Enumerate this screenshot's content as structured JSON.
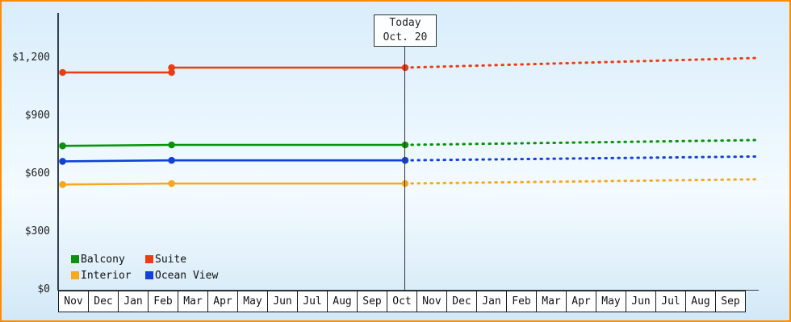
{
  "chart_data": {
    "type": "line",
    "title": "",
    "xlabel": "",
    "ylabel": "",
    "y_axis": {
      "ticks": [
        {
          "label": "$0",
          "value": 0
        },
        {
          "label": "$300",
          "value": 300
        },
        {
          "label": "$600",
          "value": 600
        },
        {
          "label": "$900",
          "value": 900
        },
        {
          "label": "$1,200",
          "value": 1200
        }
      ],
      "ylim": [
        0,
        1300
      ],
      "grid": false
    },
    "x_axis": {
      "months": [
        "Nov",
        "Dec",
        "Jan",
        "Feb",
        "Mar",
        "Apr",
        "May",
        "Jun",
        "Jul",
        "Aug",
        "Sep",
        "Oct",
        "Nov",
        "Dec",
        "Jan",
        "Feb",
        "Mar",
        "Apr",
        "May",
        "Jun",
        "Jul",
        "Aug",
        "Sep"
      ]
    },
    "today_annotation": {
      "line1": "Today",
      "line2": "Oct. 20"
    },
    "today_month_index": 11.62,
    "series": [
      {
        "name": "Balcony",
        "color": "#0a930a",
        "solid": [
          [
            0.15,
            745
          ],
          [
            3.8,
            750
          ],
          [
            11.62,
            750
          ]
        ],
        "forecast": [
          [
            11.62,
            750
          ],
          [
            23.4,
            775
          ]
        ],
        "markers": [
          [
            0.15,
            745
          ],
          [
            3.8,
            750
          ],
          [
            11.62,
            750
          ]
        ]
      },
      {
        "name": "Suite",
        "color": "#ee3b12",
        "solid": [
          [
            0.15,
            1125
          ],
          [
            3.8,
            1125
          ],
          [
            3.8,
            1150
          ],
          [
            11.62,
            1150
          ]
        ],
        "forecast": [
          [
            11.62,
            1150
          ],
          [
            23.4,
            1200
          ]
        ],
        "markers": [
          [
            0.15,
            1125
          ],
          [
            3.8,
            1125
          ],
          [
            3.8,
            1150
          ],
          [
            11.62,
            1150
          ]
        ]
      },
      {
        "name": "Interior",
        "color": "#f7a81b",
        "solid": [
          [
            0.15,
            545
          ],
          [
            3.8,
            550
          ],
          [
            11.62,
            550
          ]
        ],
        "forecast": [
          [
            11.62,
            550
          ],
          [
            23.4,
            572
          ]
        ],
        "markers": [
          [
            0.15,
            545
          ],
          [
            3.8,
            550
          ],
          [
            11.62,
            550
          ]
        ]
      },
      {
        "name": "Ocean View",
        "color": "#1240d8",
        "solid": [
          [
            0.15,
            665
          ],
          [
            3.8,
            670
          ],
          [
            11.62,
            670
          ]
        ],
        "forecast": [
          [
            11.62,
            670
          ],
          [
            23.4,
            690
          ]
        ],
        "markers": [
          [
            0.15,
            665
          ],
          [
            3.8,
            670
          ],
          [
            11.62,
            670
          ]
        ]
      }
    ],
    "legend": {
      "position": "bottom-left",
      "rows": [
        [
          "Balcony",
          "Suite"
        ],
        [
          "Interior",
          "Ocean View"
        ]
      ]
    }
  }
}
